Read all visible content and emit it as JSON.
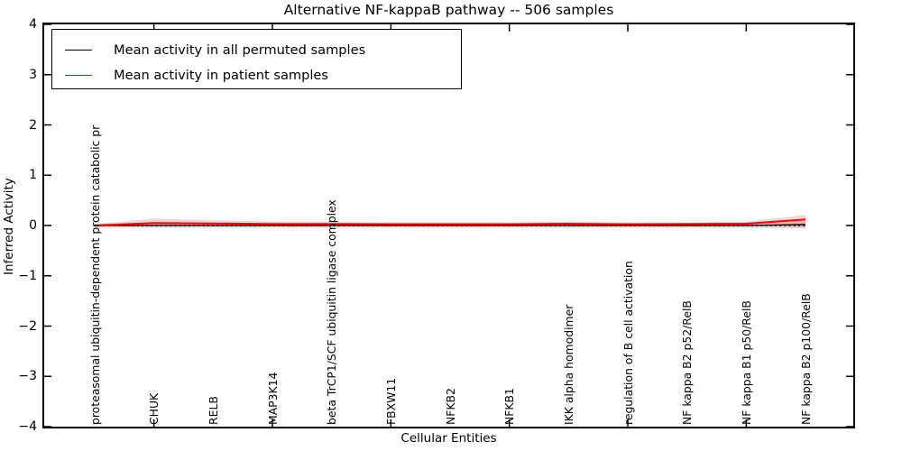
{
  "title": "Alternative NF-kappaB pathway -- 506 samples",
  "axes": {
    "ylabel": "Inferred Activity",
    "xlabel": "Cellular Entities",
    "y_tick_labels": [
      "4",
      "3",
      "2",
      "1",
      "0",
      "−1",
      "−2",
      "−3",
      "−4"
    ],
    "y_tick_values": [
      4,
      3,
      2,
      1,
      0,
      -1,
      -2,
      -3,
      -4
    ]
  },
  "legend": {
    "items": [
      {
        "label": "Mean activity in all permuted samples",
        "color": "#000000"
      },
      {
        "label": "Mean activity in patient samples",
        "color": "#ff0000"
      }
    ]
  },
  "chart_data": {
    "type": "line",
    "title": "Alternative NF-kappaB pathway -- 506 samples",
    "xlabel": "Cellular Entities",
    "ylabel": "Inferred Activity",
    "ylim": [
      -4,
      4
    ],
    "grid": false,
    "legend_position": "upper left",
    "zero_line_style": "dotted",
    "x_major_tick_indices": [
      1,
      3,
      5,
      7,
      9,
      11
    ],
    "categories": [
      "proteasomal ubiquitin-dependent protein catabolic pr",
      "CHUK",
      "RELB",
      "MAP3K14",
      "beta TrCP1/SCF ubiquitin ligase complex",
      "FBXW11",
      "NFKB2",
      "NFKB1",
      "IKK alpha homodimer",
      "regulation of B cell activation",
      "NF kappa B2 p52/RelB",
      "NF kappa B1 p50/RelB",
      "NF kappa B2 p100/RelB"
    ],
    "series": [
      {
        "name": "Mean activity in all permuted samples",
        "color": "#000000",
        "band_color": "rgba(0,0,0,0.13)",
        "values": [
          0.0,
          0.0,
          0.0,
          0.0,
          0.0,
          0.0,
          0.0,
          0.0,
          0.0,
          0.0,
          0.0,
          0.0,
          0.02
        ],
        "band_upper": [
          0.04,
          0.05,
          0.05,
          0.05,
          0.05,
          0.05,
          0.05,
          0.05,
          0.05,
          0.05,
          0.05,
          0.05,
          0.09
        ],
        "band_lower": [
          -0.04,
          -0.05,
          -0.05,
          -0.05,
          -0.05,
          -0.05,
          -0.05,
          -0.05,
          -0.05,
          -0.05,
          -0.05,
          -0.05,
          -0.06
        ]
      },
      {
        "name": "Mean activity in patient samples",
        "color": "#ff0000",
        "band_color": "rgba(255,0,0,0.18)",
        "values": [
          0.0,
          0.05,
          0.04,
          0.03,
          0.03,
          0.025,
          0.025,
          0.025,
          0.035,
          0.025,
          0.03,
          0.035,
          0.12
        ],
        "band_upper": [
          0.02,
          0.14,
          0.1,
          0.08,
          0.07,
          0.06,
          0.06,
          0.06,
          0.08,
          0.06,
          0.06,
          0.08,
          0.21
        ],
        "band_lower": [
          -0.02,
          0.0,
          0.0,
          0.0,
          0.0,
          0.0,
          0.0,
          0.0,
          0.0,
          0.0,
          0.0,
          0.0,
          -0.04
        ]
      }
    ]
  }
}
